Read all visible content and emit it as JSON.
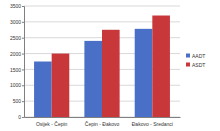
{
  "chart_data": {
    "type": "bar",
    "categories": [
      "Osijek - Čepin",
      "Čepin - Đakovo",
      "Đakovo - Sredanci"
    ],
    "series": [
      {
        "name": "AADT",
        "color": "#4a6fc6",
        "values": [
          1750,
          2400,
          2780
        ]
      },
      {
        "name": "ASDT",
        "color": "#c8373a",
        "values": [
          2000,
          2750,
          3200
        ]
      }
    ],
    "ylim": [
      0,
      3500
    ],
    "yticks": [
      0,
      500,
      1000,
      1500,
      2000,
      2500,
      3000,
      3500
    ],
    "grid": true,
    "legend": "right"
  }
}
